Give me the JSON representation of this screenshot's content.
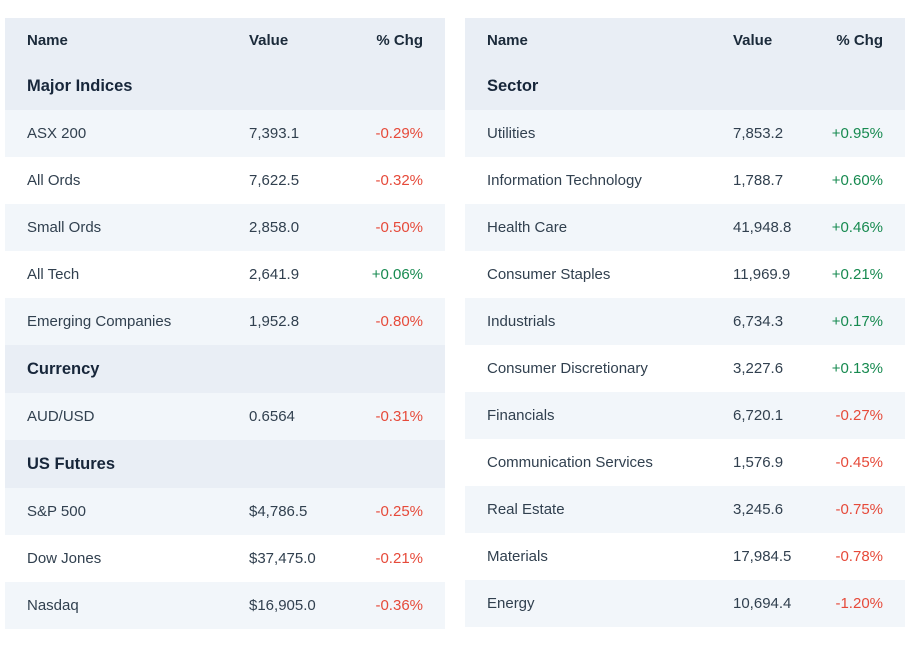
{
  "colors": {
    "positive": "#178a50",
    "negative": "#e64a3a",
    "header_bg": "#e9eef5",
    "row_alt_bg": "#f2f6fa"
  },
  "chart_data": [
    {
      "type": "table",
      "title": "Australian market overview (left panel)",
      "columns": [
        "Name",
        "Value",
        "% Chg"
      ],
      "sections": [
        {
          "title": "Major Indices",
          "rows": [
            {
              "name": "ASX 200",
              "value": "7,393.1",
              "chg": "-0.29%"
            },
            {
              "name": "All Ords",
              "value": "7,622.5",
              "chg": "-0.32%"
            },
            {
              "name": "Small Ords",
              "value": "2,858.0",
              "chg": "-0.50%"
            },
            {
              "name": "All Tech",
              "value": "2,641.9",
              "chg": "+0.06%"
            },
            {
              "name": "Emerging Companies",
              "value": "1,952.8",
              "chg": "-0.80%"
            }
          ]
        },
        {
          "title": "Currency",
          "rows": [
            {
              "name": "AUD/USD",
              "value": "0.6564",
              "chg": "-0.31%"
            }
          ]
        },
        {
          "title": "US Futures",
          "rows": [
            {
              "name": "S&P 500",
              "value": "$4,786.5",
              "chg": "-0.25%"
            },
            {
              "name": "Dow Jones",
              "value": "$37,475.0",
              "chg": "-0.21%"
            },
            {
              "name": "Nasdaq",
              "value": "$16,905.0",
              "chg": "-0.36%"
            }
          ]
        }
      ]
    },
    {
      "type": "table",
      "title": "Sector performance (right panel)",
      "columns": [
        "Name",
        "Value",
        "% Chg"
      ],
      "sections": [
        {
          "title": "Sector",
          "rows": [
            {
              "name": "Utilities",
              "value": "7,853.2",
              "chg": "+0.95%"
            },
            {
              "name": "Information Technology",
              "value": "1,788.7",
              "chg": "+0.60%"
            },
            {
              "name": "Health Care",
              "value": "41,948.8",
              "chg": "+0.46%"
            },
            {
              "name": "Consumer Staples",
              "value": "11,969.9",
              "chg": "+0.21%"
            },
            {
              "name": "Industrials",
              "value": "6,734.3",
              "chg": "+0.17%"
            },
            {
              "name": "Consumer Discretionary",
              "value": "3,227.6",
              "chg": "+0.13%"
            },
            {
              "name": "Financials",
              "value": "6,720.1",
              "chg": "-0.27%"
            },
            {
              "name": "Communication Services",
              "value": "1,576.9",
              "chg": "-0.45%"
            },
            {
              "name": "Real Estate",
              "value": "3,245.6",
              "chg": "-0.75%"
            },
            {
              "name": "Materials",
              "value": "17,984.5",
              "chg": "-0.78%"
            },
            {
              "name": "Energy",
              "value": "10,694.4",
              "chg": "-1.20%"
            }
          ]
        }
      ]
    }
  ]
}
